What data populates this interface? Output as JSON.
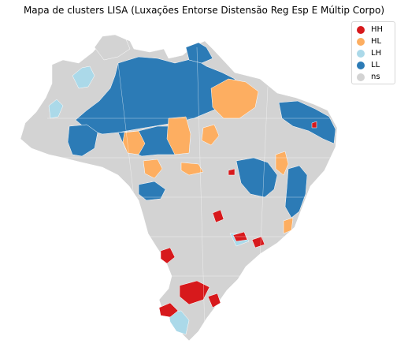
{
  "title": "Mapa de clusters LISA (Luxações Entorse Distensão Reg Esp E Múltip Corpo)",
  "legend": [
    {
      "label": "HH",
      "color": "#d7191c"
    },
    {
      "label": "HL",
      "color": "#fdae61"
    },
    {
      "label": "LH",
      "color": "#abd9e9"
    },
    {
      "label": "LL",
      "color": "#2c7bb6"
    },
    {
      "label": "ns",
      "color": "#d3d3d3"
    }
  ],
  "colors": {
    "background": "#ffffff",
    "boundary": "#ffffff"
  }
}
